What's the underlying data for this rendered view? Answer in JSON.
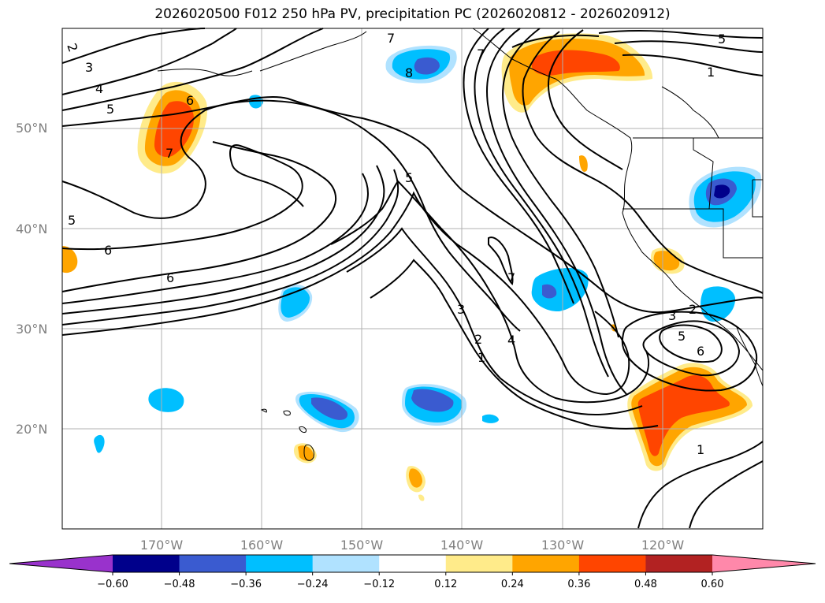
{
  "title": "2026020500 F012 250 hPa PV, precipitation PC (2026020812 - 2026020912)",
  "lat_labels": [
    "50°N",
    "40°N",
    "30°N",
    "20°N"
  ],
  "lon_labels": [
    "170°W",
    "160°W",
    "150°W",
    "140°W",
    "130°W",
    "120°W"
  ],
  "colorbar": {
    "ticks": [
      "−0.60",
      "−0.48",
      "−0.36",
      "−0.24",
      "−0.12",
      "0.12",
      "0.24",
      "0.36",
      "0.48",
      "0.60"
    ],
    "colors": [
      "#9932cc",
      "#00008b",
      "#3a5bd0",
      "#00bfff",
      "#b0e2ff",
      "#ffffff",
      "#ffeb8a",
      "#ffa500",
      "#ff4500",
      "#b22222",
      "#ff88aa"
    ]
  },
  "contour_labels": [
    "2",
    "3",
    "4",
    "5",
    "6",
    "7",
    "7",
    "5",
    "8",
    "6",
    "5",
    "6",
    "7",
    "5",
    "1",
    "3",
    "2",
    "4",
    "1",
    "3",
    "2",
    "5",
    "6",
    "1",
    "7"
  ],
  "colors": {
    "land_line": "#000000",
    "grid": "#b0b0b0",
    "contour": "#000000"
  }
}
